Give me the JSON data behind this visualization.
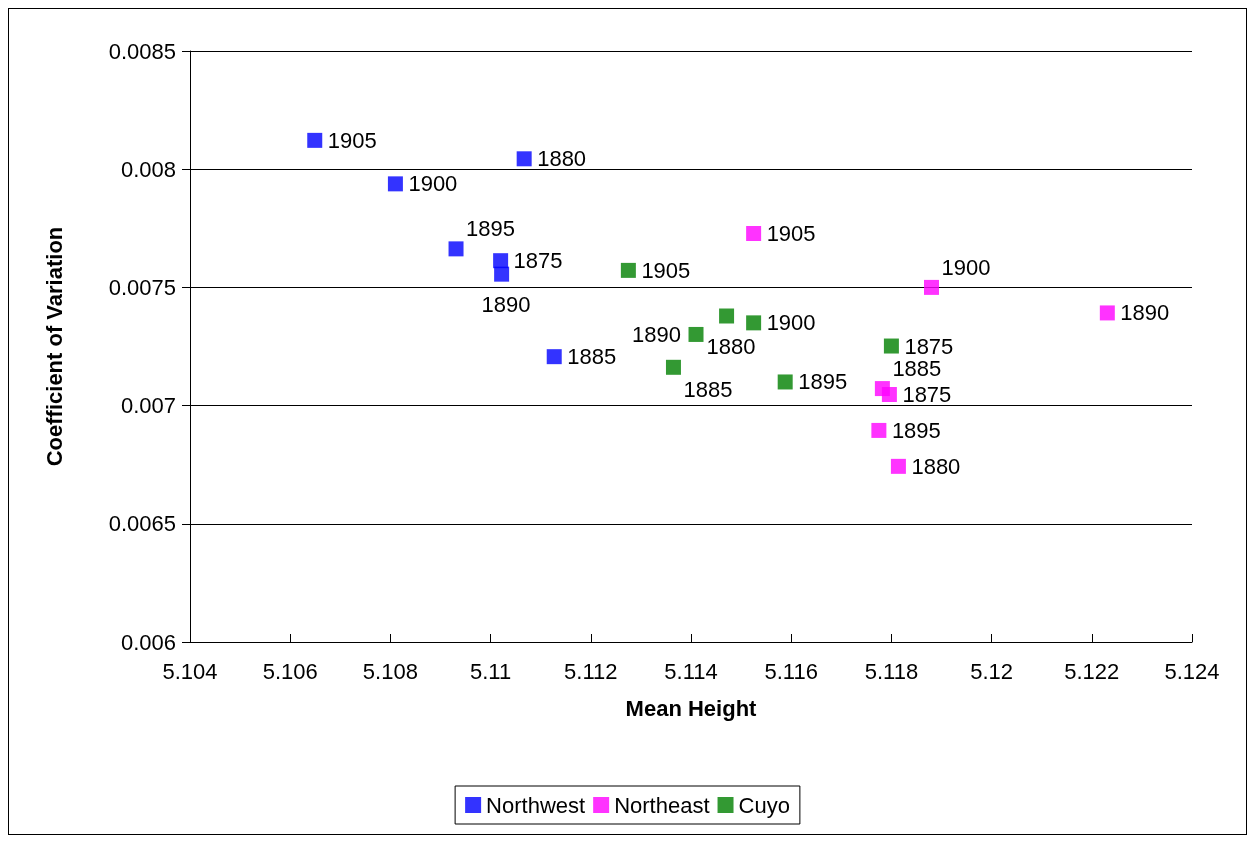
{
  "chart_data": {
    "type": "scatter",
    "xlabel": "Mean Height",
    "ylabel": "Coefficient of Variation",
    "xlim": [
      5.104,
      5.124
    ],
    "xticks": [
      5.104,
      5.106,
      5.108,
      5.11,
      5.112,
      5.114,
      5.116,
      5.118,
      5.12,
      5.122,
      5.124
    ],
    "ylim": [
      0.006,
      0.0085
    ],
    "yticks": [
      0.006,
      0.0065,
      0.007,
      0.0075,
      0.008,
      0.0085
    ],
    "grid": "y",
    "legend": "bottom",
    "marker": "square",
    "series": [
      {
        "name": "Northwest",
        "color": "#0000ff",
        "x": [
          5.10649,
          5.1081,
          5.11067,
          5.10931,
          5.1102,
          5.11022,
          5.11127
        ],
        "values": [
          0.008122,
          0.007938,
          0.008044,
          0.007663,
          0.007613,
          0.007556,
          0.007207
        ]
      },
      {
        "name": "Northeast",
        "color": "#ff00ff",
        "x": [
          5.11525,
          5.1188,
          5.12231,
          5.11782,
          5.11796,
          5.11775,
          5.11814
        ],
        "values": [
          0.007728,
          0.0075,
          0.007392,
          0.007072,
          0.007047,
          0.006895,
          0.006743
        ]
      },
      {
        "name": "Cuyo",
        "color": "#008000",
        "x": [
          5.11275,
          5.11471,
          5.1141,
          5.11525,
          5.118,
          5.11365,
          5.11588
        ],
        "values": [
          0.007572,
          0.007379,
          0.007301,
          0.00735,
          0.007252,
          0.007162,
          0.0071
        ]
      }
    ],
    "annotations": [
      {
        "text": "1905",
        "x": 5.10649,
        "y": 0.008122
      },
      {
        "text": "1900",
        "x": 5.1081,
        "y": 0.007938
      },
      {
        "text": "1880",
        "x": 5.11067,
        "y": 0.008044
      },
      {
        "text": "1895",
        "x": 5.10931,
        "y": 0.007663
      },
      {
        "text": "1875",
        "x": 5.1102,
        "y": 0.007613
      },
      {
        "text": "1890",
        "x": 5.11022,
        "y": 0.007556
      },
      {
        "text": "1885",
        "x": 5.11127,
        "y": 0.007207
      },
      {
        "text": "1905",
        "x": 5.11525,
        "y": 0.007728
      },
      {
        "text": "1900",
        "x": 5.1188,
        "y": 0.0075
      },
      {
        "text": "1890",
        "x": 5.12231,
        "y": 0.007392
      },
      {
        "text": "1885",
        "x": 5.11782,
        "y": 0.007072
      },
      {
        "text": "1875",
        "x": 5.11796,
        "y": 0.007047
      },
      {
        "text": "1895",
        "x": 5.11775,
        "y": 0.006895
      },
      {
        "text": "1880",
        "x": 5.11814,
        "y": 0.006743
      },
      {
        "text": "1905",
        "x": 5.11275,
        "y": 0.007572
      },
      {
        "text": "1880",
        "x": 5.11471,
        "y": 0.007379
      },
      {
        "text": "1890",
        "x": 5.1141,
        "y": 0.007301
      },
      {
        "text": "1900",
        "x": 5.11525,
        "y": 0.00735
      },
      {
        "text": "1875",
        "x": 5.118,
        "y": 0.007252
      },
      {
        "text": "1885",
        "x": 5.11365,
        "y": 0.007162
      },
      {
        "text": "1895",
        "x": 5.11588,
        "y": 0.0071
      }
    ]
  }
}
